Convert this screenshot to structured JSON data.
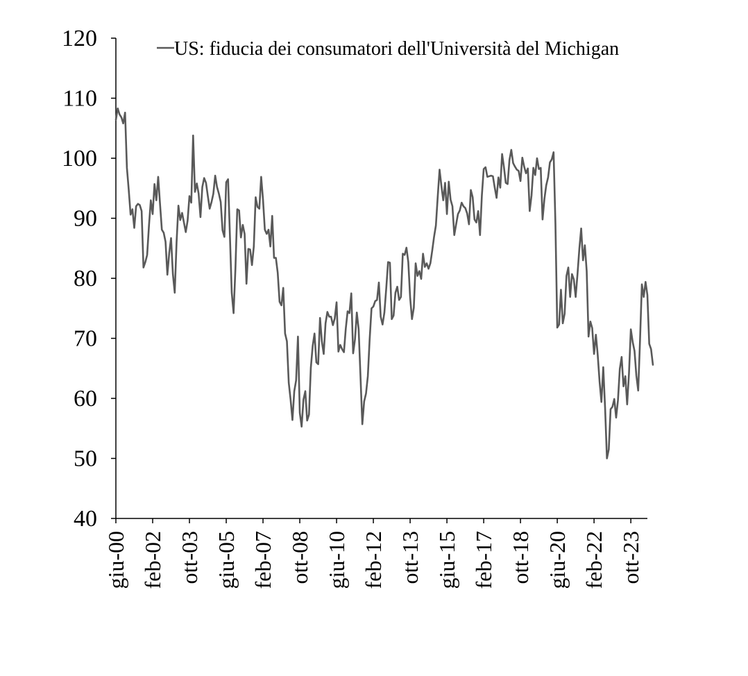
{
  "colors": {
    "line": "#595959",
    "axis": "#000000",
    "background": "#ffffff"
  },
  "chart_data": {
    "type": "line",
    "title": "",
    "xlabel": "",
    "ylabel": "",
    "ylim": [
      40,
      120
    ],
    "yticks": [
      40,
      50,
      60,
      70,
      80,
      90,
      100,
      110,
      120
    ],
    "xlim": [
      "2000-06",
      "2024-07"
    ],
    "xticks": [
      {
        "date": "2000-06",
        "label": "giu-00"
      },
      {
        "date": "2002-02",
        "label": "feb-02"
      },
      {
        "date": "2003-10",
        "label": "ott-03"
      },
      {
        "date": "2005-06",
        "label": "giu-05"
      },
      {
        "date": "2007-02",
        "label": "feb-07"
      },
      {
        "date": "2008-10",
        "label": "ott-08"
      },
      {
        "date": "2010-06",
        "label": "giu-10"
      },
      {
        "date": "2012-02",
        "label": "feb-12"
      },
      {
        "date": "2013-10",
        "label": "ott-13"
      },
      {
        "date": "2015-06",
        "label": "giu-15"
      },
      {
        "date": "2017-02",
        "label": "feb-17"
      },
      {
        "date": "2018-10",
        "label": "ott-18"
      },
      {
        "date": "2020-06",
        "label": "giu-20"
      },
      {
        "date": "2022-02",
        "label": "feb-22"
      },
      {
        "date": "2023-10",
        "label": "ott-23"
      }
    ],
    "grid": false,
    "legend": {
      "position": "top-right"
    },
    "series": [
      {
        "name": "US: fiducia dei consumatori dell'Università del Michigan",
        "color": "#595959",
        "start": "2000-06",
        "frequency": "monthly",
        "values": [
          106.4,
          108.3,
          107.3,
          106.8,
          105.8,
          107.6,
          98.4,
          94.7,
          90.6,
          91.5,
          88.4,
          92.0,
          92.4,
          92.2,
          91.2,
          81.8,
          82.7,
          83.9,
          88.8,
          93.0,
          90.7,
          95.7,
          93.0,
          96.9,
          92.4,
          88.1,
          87.6,
          86.1,
          80.6,
          84.2,
          86.7,
          80.7,
          77.6,
          86.0,
          92.1,
          89.7,
          90.9,
          89.3,
          87.7,
          89.6,
          93.7,
          92.6,
          103.8,
          94.4,
          95.8,
          94.1,
          90.2,
          95.2,
          96.7,
          95.9,
          93.7,
          91.6,
          92.7,
          94.1,
          97.1,
          95.2,
          94.1,
          92.7,
          88.0,
          86.9,
          96.0,
          96.5,
          87.2,
          77.6,
          74.2,
          81.6,
          91.5,
          91.3,
          86.8,
          88.9,
          87.4,
          79.1,
          84.9,
          84.8,
          82.2,
          85.3,
          93.5,
          91.9,
          91.6,
          96.9,
          93.1,
          88.1,
          87.4,
          88.1,
          85.3,
          90.4,
          83.4,
          83.4,
          80.9,
          76.1,
          75.5,
          78.4,
          70.8,
          69.5,
          62.6,
          59.8,
          56.4,
          61.2,
          63.0,
          70.3,
          57.6,
          55.3,
          59.8,
          61.2,
          56.3,
          57.3,
          65.1,
          68.7,
          70.8,
          66.0,
          65.7,
          73.4,
          69.5,
          67.4,
          72.5,
          74.4,
          73.6,
          73.6,
          72.2,
          73.3,
          76.0,
          67.8,
          68.9,
          68.2,
          67.7,
          71.6,
          74.5,
          74.2,
          77.5,
          67.5,
          69.8,
          74.3,
          71.5,
          63.7,
          55.7,
          59.5,
          60.8,
          63.7,
          69.9,
          75.0,
          75.3,
          76.2,
          76.4,
          79.3,
          73.6,
          72.3,
          74.3,
          78.3,
          82.7,
          82.6,
          73.2,
          73.8,
          77.6,
          78.6,
          76.4,
          76.9,
          84.1,
          83.9,
          85.1,
          82.7,
          76.8,
          73.2,
          75.1,
          82.5,
          80.4,
          81.2,
          79.9,
          84.1,
          81.9,
          82.5,
          81.6,
          82.5,
          84.6,
          86.9,
          88.8,
          93.6,
          98.1,
          95.4,
          93.0,
          95.9,
          90.7,
          96.1,
          93.1,
          92.0,
          87.2,
          89.0,
          90.7,
          91.3,
          92.6,
          92.0,
          91.7,
          90.8,
          89.0,
          94.7,
          93.5,
          89.8,
          89.3,
          91.2,
          87.2,
          93.8,
          98.2,
          98.5,
          96.9,
          97.0,
          97.1,
          97.0,
          95.1,
          93.4,
          96.8,
          95.1,
          100.7,
          98.5,
          95.9,
          95.7,
          99.7,
          101.4,
          99.2,
          98.6,
          98.1,
          97.9,
          96.2,
          100.1,
          98.6,
          97.5,
          98.3,
          91.2,
          93.8,
          98.4,
          97.2,
          100.0,
          98.2,
          98.4,
          89.8,
          93.2,
          95.5,
          96.8,
          99.3,
          99.8,
          101.0,
          89.1,
          71.8,
          72.3,
          78.1,
          72.5,
          74.1,
          80.4,
          81.8,
          76.9,
          80.7,
          79.8,
          76.9,
          80.7,
          84.9,
          88.3,
          83.0,
          85.5,
          81.2,
          70.3,
          72.8,
          71.7,
          67.4,
          70.6,
          67.2,
          62.8,
          59.4,
          65.2,
          58.4,
          50.0,
          51.5,
          58.2,
          58.6,
          59.9,
          56.8,
          59.7,
          64.9,
          66.9,
          62.0,
          63.7,
          59.0,
          64.2,
          71.5,
          69.4,
          67.9,
          63.8,
          61.3,
          69.7,
          79.0,
          76.9,
          79.4,
          77.2,
          69.1,
          68.2,
          65.6
        ]
      }
    ]
  }
}
